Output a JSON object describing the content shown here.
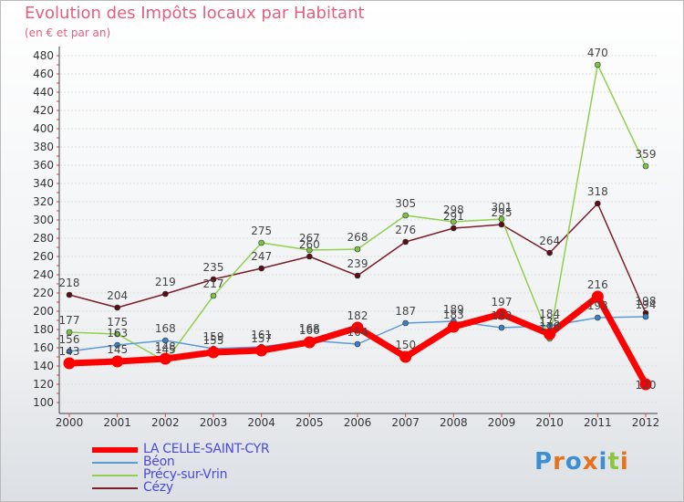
{
  "title": "Evolution des Impôts locaux par Habitant",
  "subtitle": "(en € et par an)",
  "logo": "Proxiti",
  "chart_data": {
    "type": "line",
    "title": "Evolution des Impôts locaux par Habitant",
    "ylabel": "(en € et par an)",
    "xlabel": "",
    "x": [
      "2000",
      "2001",
      "2002",
      "2003",
      "2004",
      "2005",
      "2006",
      "2007",
      "2008",
      "2009",
      "2010",
      "2011",
      "2012"
    ],
    "ylim": [
      100,
      480
    ],
    "yticks": [
      100,
      120,
      140,
      160,
      180,
      200,
      220,
      240,
      260,
      280,
      300,
      320,
      340,
      360,
      380,
      400,
      420,
      440,
      460,
      480
    ],
    "grid": true,
    "legend_position": "bottom-left",
    "series": [
      {
        "name": "LA CELLE-SAINT-CYR",
        "color": "#ff0000",
        "values": [
          143,
          145,
          148,
          155,
          157,
          166,
          182,
          150,
          183,
          197,
          175,
          216,
          120
        ],
        "labels": [
          "143",
          "145",
          "148",
          "155",
          "157",
          "166",
          "182",
          "150",
          "183",
          "197",
          "175",
          "216",
          "120"
        ]
      },
      {
        "name": "Béon",
        "color": "#5b9bd5",
        "values": [
          156,
          163,
          168,
          159,
          161,
          168,
          164,
          187,
          189,
          182,
          184,
          193,
          194
        ],
        "labels": [
          "156",
          "163",
          "168",
          "159",
          "161",
          "168",
          "164",
          "187",
          "189",
          "182",
          "184",
          "193",
          "194"
        ]
      },
      {
        "name": "Précy-sur-Vrin",
        "color": "#90d050",
        "values": [
          177,
          175,
          145,
          217,
          275,
          267,
          268,
          305,
          298,
          301,
          170,
          470,
          359
        ],
        "labels": [
          "177",
          "175",
          "145",
          "217",
          "275",
          "267",
          "268",
          "305",
          "298",
          "301",
          "170",
          "470",
          "359"
        ]
      },
      {
        "name": "Cézy",
        "color": "#7a1e2a",
        "values": [
          218,
          204,
          219,
          235,
          247,
          260,
          239,
          276,
          291,
          295,
          264,
          318,
          198
        ],
        "labels": [
          "218",
          "204",
          "219",
          "235",
          "247",
          "260",
          "239",
          "276",
          "291",
          "295",
          "264",
          "318",
          "198"
        ]
      }
    ]
  }
}
